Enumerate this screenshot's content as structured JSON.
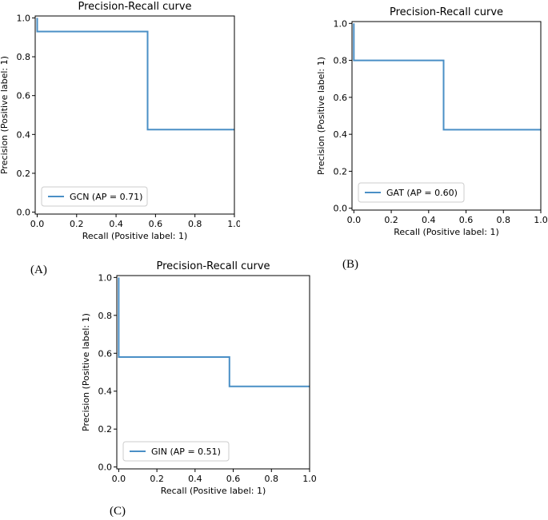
{
  "panels": [
    "(A)",
    "(B)",
    "(C)"
  ],
  "style": {
    "line_color": "#4a8fc6",
    "axes_color": "#000000",
    "legend_border": "#cccccc"
  },
  "chart_data": [
    {
      "type": "line",
      "title": "Precision-Recall curve",
      "xlabel": "Recall (Positive label: 1)",
      "ylabel": "Precision (Positive label: 1)",
      "xlim": [
        -0.01,
        1.0
      ],
      "ylim": [
        -0.01,
        1.01
      ],
      "xticks": [
        "0.0",
        "0.2",
        "0.4",
        "0.6",
        "0.8",
        "1.0"
      ],
      "yticks": [
        "0.0",
        "0.2",
        "0.4",
        "0.6",
        "0.8",
        "1.0"
      ],
      "legend": "GCN (AP = 0.71)",
      "legend_loc": "lower-left",
      "series": [
        {
          "name": "GCN (AP = 0.71)",
          "x": [
            0,
            0,
            0.005,
            0.005,
            0.56,
            0.56,
            1.0
          ],
          "y": [
            1.0,
            0.93,
            0.93,
            0.93,
            0.93,
            0.425,
            0.425
          ]
        }
      ]
    },
    {
      "type": "line",
      "title": "Precision-Recall curve",
      "xlabel": "Recall (Positive label: 1)",
      "ylabel": "Precision (Positive label: 1)",
      "xlim": [
        -0.01,
        1.0
      ],
      "ylim": [
        -0.01,
        1.01
      ],
      "xticks": [
        "0.0",
        "0.2",
        "0.4",
        "0.6",
        "0.8",
        "1.0"
      ],
      "yticks": [
        "0.0",
        "0.2",
        "0.4",
        "0.6",
        "0.8",
        "1.0"
      ],
      "legend": "GAT (AP = 0.60)",
      "legend_loc": "lower-left",
      "series": [
        {
          "name": "GAT (AP = 0.60)",
          "x": [
            0,
            0,
            0.48,
            0.48,
            1.0
          ],
          "y": [
            1.0,
            0.8,
            0.8,
            0.425,
            0.425
          ]
        }
      ]
    },
    {
      "type": "line",
      "title": "Precision-Recall curve",
      "xlabel": "Recall (Positive label: 1)",
      "ylabel": "Precision (Positive label: 1)",
      "xlim": [
        -0.01,
        1.0
      ],
      "ylim": [
        -0.01,
        1.01
      ],
      "xticks": [
        "0.0",
        "0.2",
        "0.4",
        "0.6",
        "0.8",
        "1.0"
      ],
      "yticks": [
        "0.0",
        "0.2",
        "0.4",
        "0.6",
        "0.8",
        "1.0"
      ],
      "legend": "GIN (AP = 0.51)",
      "legend_loc": "lower-left",
      "series": [
        {
          "name": "GIN (AP = 0.51)",
          "x": [
            0,
            0,
            0.58,
            0.58,
            1.0
          ],
          "y": [
            1.0,
            0.58,
            0.58,
            0.425,
            0.425
          ]
        }
      ]
    }
  ]
}
